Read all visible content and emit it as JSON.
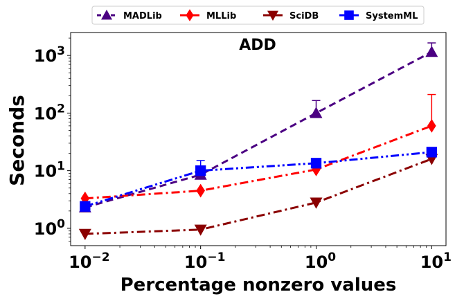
{
  "chart_data": {
    "type": "line",
    "title": "ADD",
    "xlabel": "Percentage nonzero values",
    "ylabel": "Seconds",
    "xscale": "log",
    "yscale": "log",
    "xlim": [
      0.0075,
      13.3
    ],
    "ylim": [
      0.5,
      2500
    ],
    "x": [
      0.01,
      0.1,
      1,
      10
    ],
    "x_ticks": [
      {
        "value": 0.01,
        "base": "10",
        "exp": "−2"
      },
      {
        "value": 0.1,
        "base": "10",
        "exp": "−1"
      },
      {
        "value": 1,
        "base": "10",
        "exp": "0"
      },
      {
        "value": 10,
        "base": "10",
        "exp": "1"
      }
    ],
    "y_ticks": [
      {
        "value": 1,
        "base": "10",
        "exp": "0"
      },
      {
        "value": 10,
        "base": "10",
        "exp": "1"
      },
      {
        "value": 100,
        "base": "10",
        "exp": "2"
      },
      {
        "value": 1000,
        "base": "10",
        "exp": "3"
      }
    ],
    "grid": false,
    "legend_position": "top-center",
    "series": [
      {
        "name": "MADLib",
        "color": "#4b0082",
        "marker": "triangle-up",
        "line_style": "dashed",
        "values": [
          2.3,
          8.5,
          100,
          1150
        ],
        "error_high": [
          null,
          10.5,
          165,
          1650
        ]
      },
      {
        "name": "MLLib",
        "color": "#ff0000",
        "marker": "diamond",
        "line_style": "dash-dot",
        "values": [
          3.3,
          4.5,
          10.5,
          60
        ],
        "error_high": [
          null,
          null,
          null,
          210
        ]
      },
      {
        "name": "SciDB",
        "color": "#8b0000",
        "marker": "triangle-down",
        "line_style": "dash-dot",
        "values": [
          0.8,
          0.95,
          2.8,
          16
        ],
        "error_high": [
          null,
          null,
          null,
          null
        ]
      },
      {
        "name": "SystemML",
        "color": "#0000ff",
        "marker": "square",
        "line_style": "dash-dot-dot",
        "values": [
          2.4,
          10,
          13.5,
          21
        ],
        "error_high": [
          2.9,
          15,
          null,
          null
        ]
      }
    ]
  }
}
